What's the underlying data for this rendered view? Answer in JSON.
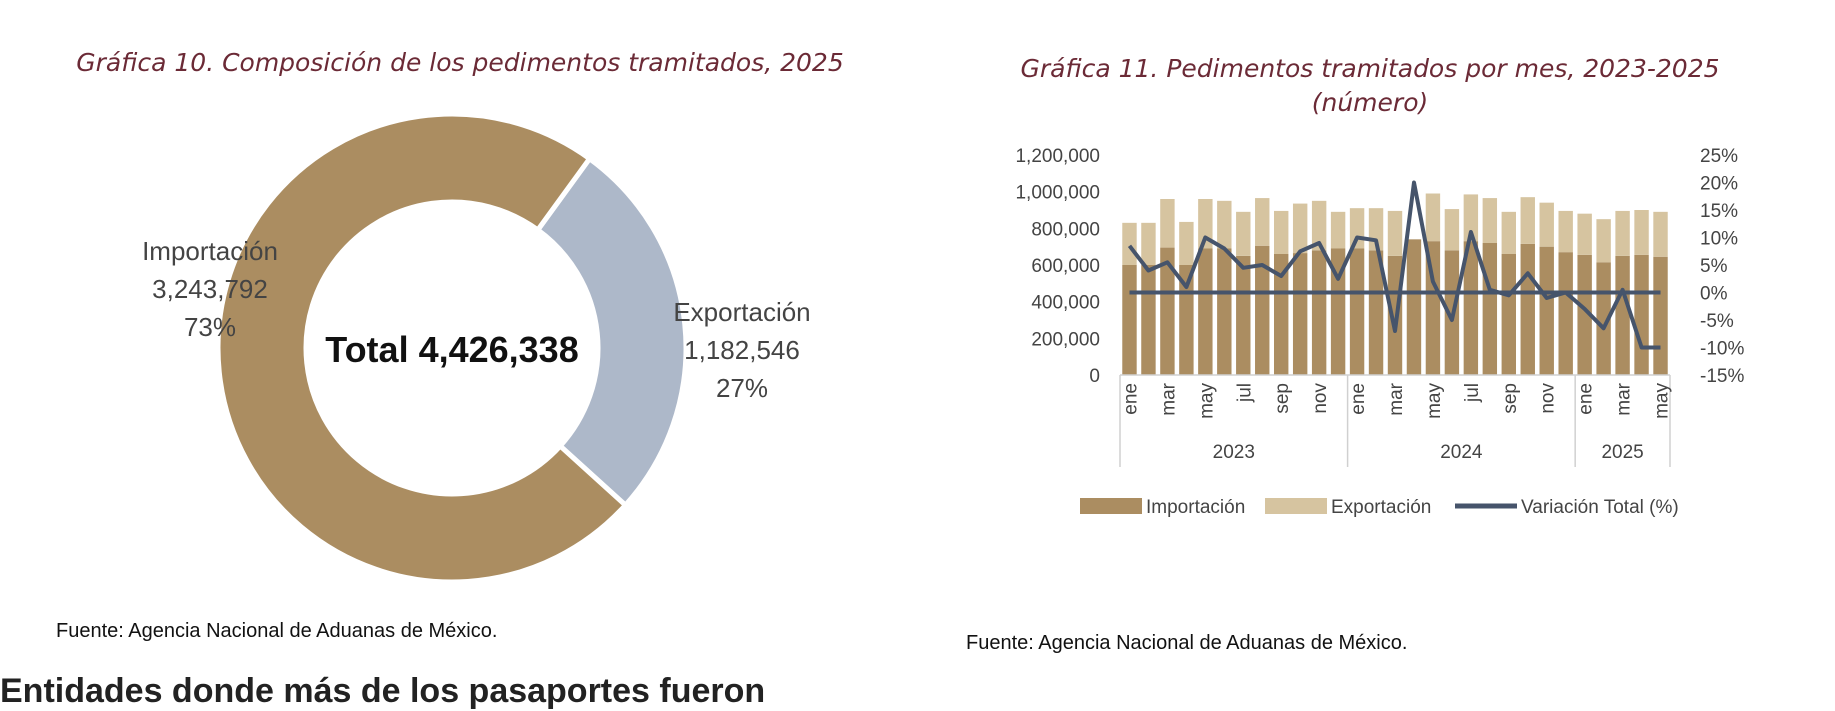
{
  "charts": [
    {
      "title": "Gráfica 10. Composición de los pedimentos tramitados, 2025",
      "source": "Fuente: Agencia Nacional de Aduanas de México.",
      "center_label": "Total 4,426,338"
    },
    {
      "title_line1": "Gráfica 11. Pedimentos tramitados por mes, 2023-2025",
      "title_line2": "(número)",
      "source": "Fuente: Agencia Nacional de Aduanas de México."
    }
  ],
  "cut_text": "Entidades donde más de los pasaportes fueron",
  "chart_data": [
    {
      "type": "pie",
      "title": "Gráfica 10. Composición de los pedimentos tramitados, 2025",
      "total_label": "Total 4,426,338",
      "slices": [
        {
          "name": "Importación",
          "value": 3243792,
          "value_label": "3,243,792",
          "pct_label": "73%",
          "color": "#ab8d61"
        },
        {
          "name": "Exportación",
          "value": 1182546,
          "value_label": "1,182,546",
          "pct_label": "27%",
          "color": "#adb8c9"
        }
      ]
    },
    {
      "type": "bar",
      "stacked": true,
      "title": "Gráfica 11. Pedimentos tramitados por mes, 2023-2025 (número)",
      "categories": [
        "ene",
        "feb",
        "mar",
        "abr",
        "may",
        "jun",
        "jul",
        "ago",
        "sep",
        "oct",
        "nov",
        "dic",
        "ene",
        "feb",
        "mar",
        "abr",
        "may",
        "jun",
        "jul",
        "ago",
        "sep",
        "oct",
        "nov",
        "dic",
        "ene",
        "feb",
        "mar",
        "abr",
        "may"
      ],
      "tick_labels": [
        "ene",
        "",
        "mar",
        "",
        "may",
        "",
        "jul",
        "",
        "sep",
        "",
        "nov",
        "",
        "ene",
        "",
        "mar",
        "",
        "may",
        "",
        "jul",
        "",
        "sep",
        "",
        "nov",
        "",
        "ene",
        "",
        "mar",
        "",
        "may"
      ],
      "groups": [
        {
          "label": "2023",
          "count": 12
        },
        {
          "label": "2024",
          "count": 12
        },
        {
          "label": "2025",
          "count": 5
        }
      ],
      "series": [
        {
          "name": "Importación",
          "axis": "left",
          "color": "#ab8d61",
          "values": [
            600000,
            600000,
            695000,
            600000,
            690000,
            690000,
            650000,
            705000,
            660000,
            665000,
            680000,
            690000,
            690000,
            680000,
            650000,
            740000,
            730000,
            680000,
            730000,
            720000,
            660000,
            715000,
            700000,
            670000,
            655000,
            615000,
            650000,
            655000,
            645000
          ]
        },
        {
          "name": "Exportación",
          "axis": "left",
          "color": "#d6c4a0",
          "values": [
            230000,
            230000,
            265000,
            235000,
            270000,
            260000,
            240000,
            260000,
            235000,
            270000,
            270000,
            200000,
            220000,
            230000,
            245000,
            0,
            260000,
            225000,
            255000,
            245000,
            230000,
            255000,
            240000,
            225000,
            225000,
            235000,
            245000,
            245000,
            245000
          ]
        },
        {
          "name": "Variación Total (%)",
          "axis": "right",
          "type": "line",
          "color": "#46546b",
          "values": [
            8.5,
            4.0,
            5.5,
            1.0,
            10.0,
            8.0,
            4.5,
            5.0,
            3.0,
            7.5,
            9.0,
            2.5,
            10.0,
            9.5,
            -7.0,
            20.0,
            2.0,
            -5.0,
            11.0,
            0.5,
            -0.5,
            3.5,
            -1.0,
            0.0,
            -3.0,
            -6.5,
            0.5,
            -10.0,
            -10.0
          ]
        }
      ],
      "left_axis": {
        "min": 0,
        "max": 1200000,
        "ticks": [
          "0",
          "200,000",
          "400,000",
          "600,000",
          "800,000",
          "1,000,000",
          "1,200,000"
        ]
      },
      "right_axis": {
        "min": -15,
        "max": 25,
        "ticks": [
          "-15%",
          "-10%",
          "-5%",
          "0%",
          "5%",
          "10%",
          "15%",
          "20%",
          "25%"
        ]
      },
      "legend": [
        "Importación",
        "Exportación",
        "Variación Total (%)"
      ],
      "legend_position": "bottom"
    }
  ]
}
